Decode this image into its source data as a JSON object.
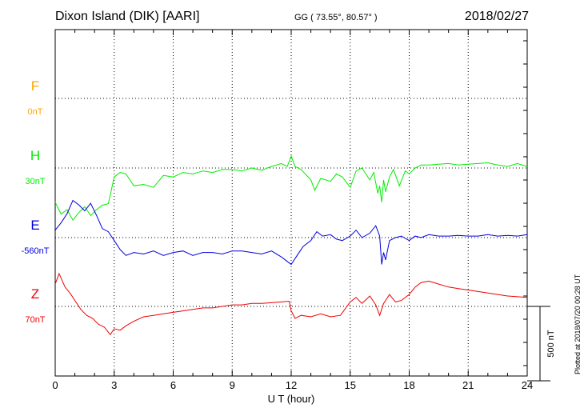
{
  "header": {
    "station": "Dixon Island (DIK)  [AARI]",
    "coords": "GG ( 73.55°,  80.57° )",
    "date": "2018/02/27"
  },
  "footer": {
    "plotted": "Plotted at 2018/07/20 00:28 UT"
  },
  "colors": {
    "F": "#ffa500",
    "H": "#00ee00",
    "E": "#0000dd",
    "Z": "#ee0000",
    "axis": "#000000"
  },
  "chart_data": {
    "type": "line",
    "title": "Dixon Island (DIK)  [AARI]",
    "xlabel": "U T (hour)",
    "xlim": [
      0,
      24
    ],
    "xticks": [
      0,
      3,
      6,
      9,
      12,
      15,
      18,
      21,
      24
    ],
    "xtick_labels": [
      "0",
      "3",
      "6",
      "9",
      "12",
      "15",
      "18",
      "21",
      "24"
    ],
    "grid": true,
    "scale_bar": {
      "label": "500 nT",
      "value_nT": 500
    },
    "series": [
      {
        "name": "F",
        "baseline_label": "0nT",
        "color": "#ffa500",
        "x": [],
        "y": []
      },
      {
        "name": "H",
        "baseline_label": "30nT",
        "color": "#00ee00",
        "x": [
          0,
          0.3,
          0.6,
          0.9,
          1.2,
          1.5,
          1.8,
          2.1,
          2.4,
          2.7,
          3.0,
          3.3,
          3.6,
          4.0,
          4.5,
          5.0,
          5.5,
          6.0,
          6.5,
          7.0,
          7.5,
          8.0,
          8.5,
          9.0,
          9.5,
          10.0,
          10.5,
          11.0,
          11.5,
          11.8,
          12.0,
          12.2,
          12.5,
          13.0,
          13.2,
          13.5,
          14.0,
          14.3,
          14.6,
          15.0,
          15.3,
          15.6,
          16.0,
          16.2,
          16.4,
          16.5,
          16.6,
          16.7,
          16.8,
          17.0,
          17.2,
          17.5,
          17.8,
          18.0,
          18.3,
          18.6,
          19.0,
          19.5,
          20.0,
          20.5,
          21.0,
          21.5,
          22.0,
          22.5,
          23.0,
          23.5,
          24.0
        ],
        "y": [
          -230,
          -310,
          -280,
          -350,
          -300,
          -260,
          -320,
          -280,
          -250,
          -240,
          -60,
          -30,
          -40,
          -120,
          -110,
          -130,
          -50,
          -60,
          -30,
          -40,
          -20,
          -30,
          -10,
          -10,
          -20,
          0,
          -15,
          10,
          30,
          10,
          80,
          10,
          -10,
          -80,
          -150,
          -70,
          -90,
          -40,
          -60,
          -130,
          -20,
          0,
          -80,
          -30,
          -170,
          -120,
          -230,
          -80,
          -160,
          -60,
          -10,
          -120,
          -20,
          -40,
          0,
          20,
          20,
          25,
          30,
          20,
          25,
          30,
          35,
          20,
          10,
          30,
          10
        ]
      },
      {
        "name": "E",
        "baseline_label": "-560nT",
        "color": "#0000dd",
        "x": [
          0,
          0.3,
          0.6,
          0.9,
          1.2,
          1.5,
          1.8,
          2.1,
          2.4,
          2.7,
          3.0,
          3.3,
          3.6,
          4.0,
          4.5,
          5.0,
          5.5,
          6.0,
          6.5,
          7.0,
          7.5,
          8.0,
          8.5,
          9.0,
          9.5,
          10.0,
          10.5,
          11.0,
          11.5,
          11.8,
          12.0,
          12.3,
          12.6,
          13.0,
          13.3,
          13.6,
          14.0,
          14.3,
          14.6,
          15.0,
          15.3,
          15.6,
          16.0,
          16.3,
          16.5,
          16.6,
          16.7,
          16.8,
          17.0,
          17.3,
          17.6,
          18.0,
          18.3,
          18.6,
          19.0,
          19.5,
          20.0,
          20.5,
          21.0,
          21.5,
          22.0,
          22.5,
          23.0,
          23.5,
          24.0
        ],
        "y": [
          50,
          100,
          160,
          250,
          220,
          180,
          230,
          150,
          60,
          40,
          -20,
          -80,
          -120,
          -100,
          -110,
          -90,
          -120,
          -100,
          -90,
          -120,
          -100,
          -100,
          -110,
          -90,
          -90,
          -100,
          -110,
          -90,
          -130,
          -160,
          -180,
          -120,
          -60,
          -20,
          40,
          10,
          20,
          -10,
          -20,
          10,
          50,
          0,
          30,
          80,
          10,
          -180,
          -100,
          -150,
          -20,
          0,
          10,
          -20,
          10,
          0,
          20,
          10,
          10,
          15,
          10,
          10,
          20,
          10,
          15,
          10,
          20
        ]
      },
      {
        "name": "Z",
        "baseline_label": "70nT",
        "color": "#ee0000",
        "x": [
          0,
          0.2,
          0.5,
          0.8,
          1.0,
          1.3,
          1.6,
          1.9,
          2.2,
          2.5,
          2.8,
          3.0,
          3.3,
          3.6,
          4.0,
          4.5,
          5.0,
          5.5,
          6.0,
          6.5,
          7.0,
          7.5,
          8.0,
          8.5,
          9.0,
          9.5,
          10.0,
          10.5,
          11.0,
          11.5,
          11.9,
          12.0,
          12.2,
          12.5,
          13.0,
          13.5,
          14.0,
          14.5,
          15.0,
          15.3,
          15.6,
          16.0,
          16.3,
          16.5,
          16.7,
          17.0,
          17.3,
          17.6,
          18.0,
          18.3,
          18.6,
          19.0,
          19.5,
          20.0,
          20.5,
          21.0,
          21.5,
          22.0,
          22.5,
          23.0,
          23.5,
          24.0
        ],
        "y": [
          150,
          220,
          130,
          80,
          40,
          -20,
          -60,
          -80,
          -120,
          -140,
          -190,
          -150,
          -160,
          -130,
          -100,
          -70,
          -60,
          -50,
          -40,
          -30,
          -20,
          -10,
          -10,
          0,
          10,
          10,
          20,
          20,
          25,
          30,
          35,
          -30,
          -80,
          -60,
          -70,
          -50,
          -70,
          -60,
          30,
          60,
          20,
          70,
          10,
          -60,
          20,
          80,
          30,
          40,
          80,
          130,
          160,
          170,
          150,
          130,
          120,
          110,
          100,
          90,
          80,
          70,
          65,
          60
        ]
      }
    ]
  }
}
